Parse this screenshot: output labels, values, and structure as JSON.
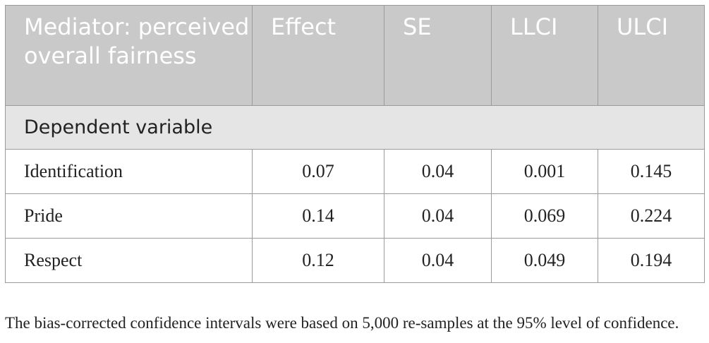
{
  "table": {
    "headers": [
      "Mediator: perceived overall fairness",
      "Effect",
      "SE",
      "LLCI",
      "ULCI"
    ],
    "section_label": "Dependent variable",
    "rows": [
      {
        "label": "Identification",
        "effect": "0.07",
        "se": "0.04",
        "llci": "0.001",
        "ulci": "0.145"
      },
      {
        "label": "Pride",
        "effect": "0.14",
        "se": "0.04",
        "llci": "0.069",
        "ulci": "0.224"
      },
      {
        "label": "Respect",
        "effect": "0.12",
        "se": "0.04",
        "llci": "0.049",
        "ulci": "0.194"
      }
    ]
  },
  "footnote": "The bias-corrected confidence intervals were based on 5,000 re-samples at the 95% level of confidence.",
  "colors": {
    "header_bg": "#c9c9c9",
    "header_text": "#ffffff",
    "section_bg": "#e5e5e5",
    "border": "#9a9a9a",
    "body_text": "#222222"
  }
}
